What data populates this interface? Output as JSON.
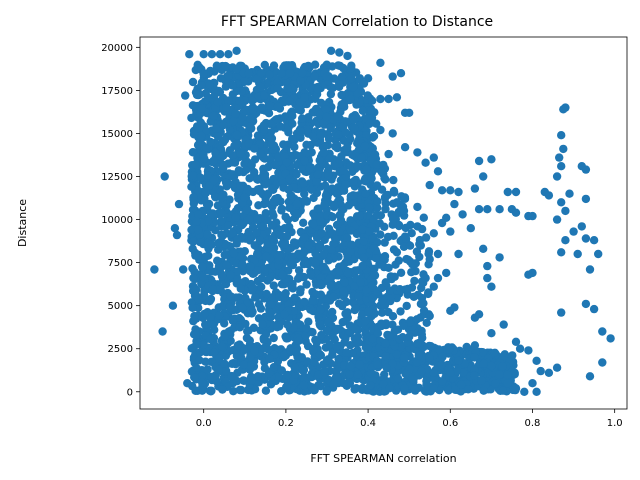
{
  "chart_data": {
    "type": "scatter",
    "title": "FFT SPEARMAN Correlation to Distance",
    "xlabel": "FFT SPEARMAN correlation",
    "ylabel": "Distance",
    "xlim": [
      -0.155,
      1.03
    ],
    "ylim": [
      -1000,
      20600
    ],
    "xticks": [
      0.0,
      0.2,
      0.4,
      0.6,
      0.8,
      1.0
    ],
    "xtick_labels": [
      "0.0",
      "0.2",
      "0.4",
      "0.6",
      "0.8",
      "1.0"
    ],
    "yticks": [
      0,
      2500,
      5000,
      7500,
      10000,
      12500,
      15000,
      17500,
      20000
    ],
    "ytick_labels": [
      "0",
      "2500",
      "5000",
      "7500",
      "10000",
      "12500",
      "15000",
      "17500",
      "20000"
    ],
    "grid": false,
    "marker_color": "#1f77b4",
    "series": [
      {
        "name": "",
        "points": [
          [
            -0.12,
            7100
          ],
          [
            -0.1,
            3500
          ],
          [
            -0.095,
            12500
          ],
          [
            -0.075,
            5000
          ],
          [
            -0.07,
            9500
          ],
          [
            -0.065,
            9100
          ],
          [
            -0.06,
            10900
          ],
          [
            -0.05,
            7100
          ],
          [
            -0.045,
            17200
          ],
          [
            -0.04,
            500
          ],
          [
            -0.035,
            19600
          ],
          [
            -0.03,
            15900
          ],
          [
            -0.03,
            11900
          ],
          [
            -0.025,
            6600
          ],
          [
            -0.02,
            13200
          ],
          [
            0.0,
            19600
          ],
          [
            0.02,
            19600
          ],
          [
            0.04,
            19600
          ],
          [
            0.06,
            19600
          ],
          [
            0.08,
            19800
          ],
          [
            0.11,
            18500
          ],
          [
            0.14,
            18500
          ],
          [
            0.16,
            18400
          ],
          [
            0.19,
            18500
          ],
          [
            0.21,
            18500
          ],
          [
            0.24,
            18500
          ],
          [
            0.27,
            18300
          ],
          [
            0.3,
            18300
          ],
          [
            0.31,
            19800
          ],
          [
            0.33,
            19700
          ],
          [
            0.35,
            19500
          ],
          [
            0.36,
            18200
          ],
          [
            0.38,
            18200
          ],
          [
            0.4,
            18200
          ],
          [
            0.43,
            19100
          ],
          [
            0.46,
            18300
          ],
          [
            0.48,
            18500
          ],
          [
            0.47,
            17100
          ],
          [
            0.49,
            16200
          ],
          [
            0.5,
            16200
          ],
          [
            0.46,
            15000
          ],
          [
            0.49,
            14200
          ],
          [
            0.52,
            13900
          ],
          [
            0.54,
            13300
          ],
          [
            0.56,
            13600
          ],
          [
            0.57,
            12800
          ],
          [
            0.55,
            12000
          ],
          [
            0.58,
            11700
          ],
          [
            0.6,
            11700
          ],
          [
            0.62,
            11600
          ],
          [
            0.61,
            10900
          ],
          [
            0.63,
            10300
          ],
          [
            0.65,
            9500
          ],
          [
            0.67,
            10600
          ],
          [
            0.69,
            10600
          ],
          [
            0.72,
            10600
          ],
          [
            0.75,
            10600
          ],
          [
            0.76,
            10400
          ],
          [
            0.79,
            10200
          ],
          [
            0.8,
            10200
          ],
          [
            0.74,
            11600
          ],
          [
            0.76,
            11600
          ],
          [
            0.83,
            11600
          ],
          [
            0.84,
            11400
          ],
          [
            0.87,
            11000
          ],
          [
            0.89,
            11500
          ],
          [
            0.93,
            11200
          ],
          [
            0.68,
            12500
          ],
          [
            0.67,
            13400
          ],
          [
            0.7,
            13500
          ],
          [
            0.66,
            11800
          ],
          [
            0.88,
            16500
          ],
          [
            0.875,
            16400
          ],
          [
            0.87,
            14900
          ],
          [
            0.875,
            14100
          ],
          [
            0.865,
            13600
          ],
          [
            0.87,
            13100
          ],
          [
            0.86,
            12500
          ],
          [
            0.92,
            13100
          ],
          [
            0.93,
            12900
          ],
          [
            0.86,
            10000
          ],
          [
            0.88,
            10500
          ],
          [
            0.88,
            8800
          ],
          [
            0.9,
            9300
          ],
          [
            0.92,
            9600
          ],
          [
            0.93,
            8900
          ],
          [
            0.95,
            8800
          ],
          [
            0.91,
            8000
          ],
          [
            0.87,
            8100
          ],
          [
            0.96,
            8000
          ],
          [
            0.94,
            7100
          ],
          [
            0.93,
            5100
          ],
          [
            0.95,
            4800
          ],
          [
            0.87,
            4600
          ],
          [
            0.97,
            3500
          ],
          [
            0.99,
            3100
          ],
          [
            0.97,
            1700
          ],
          [
            0.94,
            900
          ],
          [
            0.86,
            1400
          ],
          [
            0.8,
            6900
          ],
          [
            0.79,
            6800
          ],
          [
            0.72,
            7800
          ],
          [
            0.69,
            7300
          ],
          [
            0.7,
            6100
          ],
          [
            0.69,
            6600
          ],
          [
            0.68,
            8300
          ],
          [
            0.62,
            8000
          ],
          [
            0.59,
            10100
          ],
          [
            0.6,
            9300
          ],
          [
            0.58,
            9800
          ],
          [
            0.56,
            9200
          ],
          [
            0.57,
            8000
          ],
          [
            0.55,
            7700
          ],
          [
            0.54,
            6600
          ],
          [
            0.57,
            6600
          ],
          [
            0.59,
            6900
          ],
          [
            0.56,
            6100
          ],
          [
            0.55,
            4400
          ],
          [
            0.6,
            4700
          ],
          [
            0.61,
            4900
          ],
          [
            0.66,
            4300
          ],
          [
            0.67,
            4500
          ],
          [
            0.7,
            3400
          ],
          [
            0.73,
            3900
          ],
          [
            0.76,
            2900
          ],
          [
            0.77,
            2500
          ],
          [
            0.79,
            2400
          ],
          [
            0.81,
            1800
          ],
          [
            0.82,
            1200
          ],
          [
            0.84,
            1100
          ],
          [
            0.8,
            500
          ],
          [
            0.81,
            0
          ],
          [
            0.78,
            0
          ],
          [
            0.76,
            200
          ],
          [
            0.74,
            500
          ],
          [
            0.72,
            1000
          ],
          [
            0.7,
            1500
          ],
          [
            0.66,
            2700
          ],
          [
            0.64,
            2600
          ],
          [
            0.62,
            1800
          ],
          [
            0.6,
            1100
          ],
          [
            0.58,
            600
          ],
          [
            0.56,
            200
          ],
          [
            0.53,
            1200
          ],
          [
            0.52,
            2800
          ],
          [
            0.5,
            3200
          ],
          [
            0.48,
            5900
          ],
          [
            0.45,
            7200
          ],
          [
            0.47,
            8100
          ],
          [
            0.46,
            9700
          ],
          [
            0.47,
            11000
          ],
          [
            0.44,
            12400
          ],
          [
            0.45,
            13800
          ],
          [
            0.43,
            15200
          ],
          [
            0.41,
            16900
          ],
          [
            0.39,
            17900
          ],
          [
            0.43,
            17000
          ],
          [
            0.45,
            17000
          ]
        ]
      }
    ]
  }
}
